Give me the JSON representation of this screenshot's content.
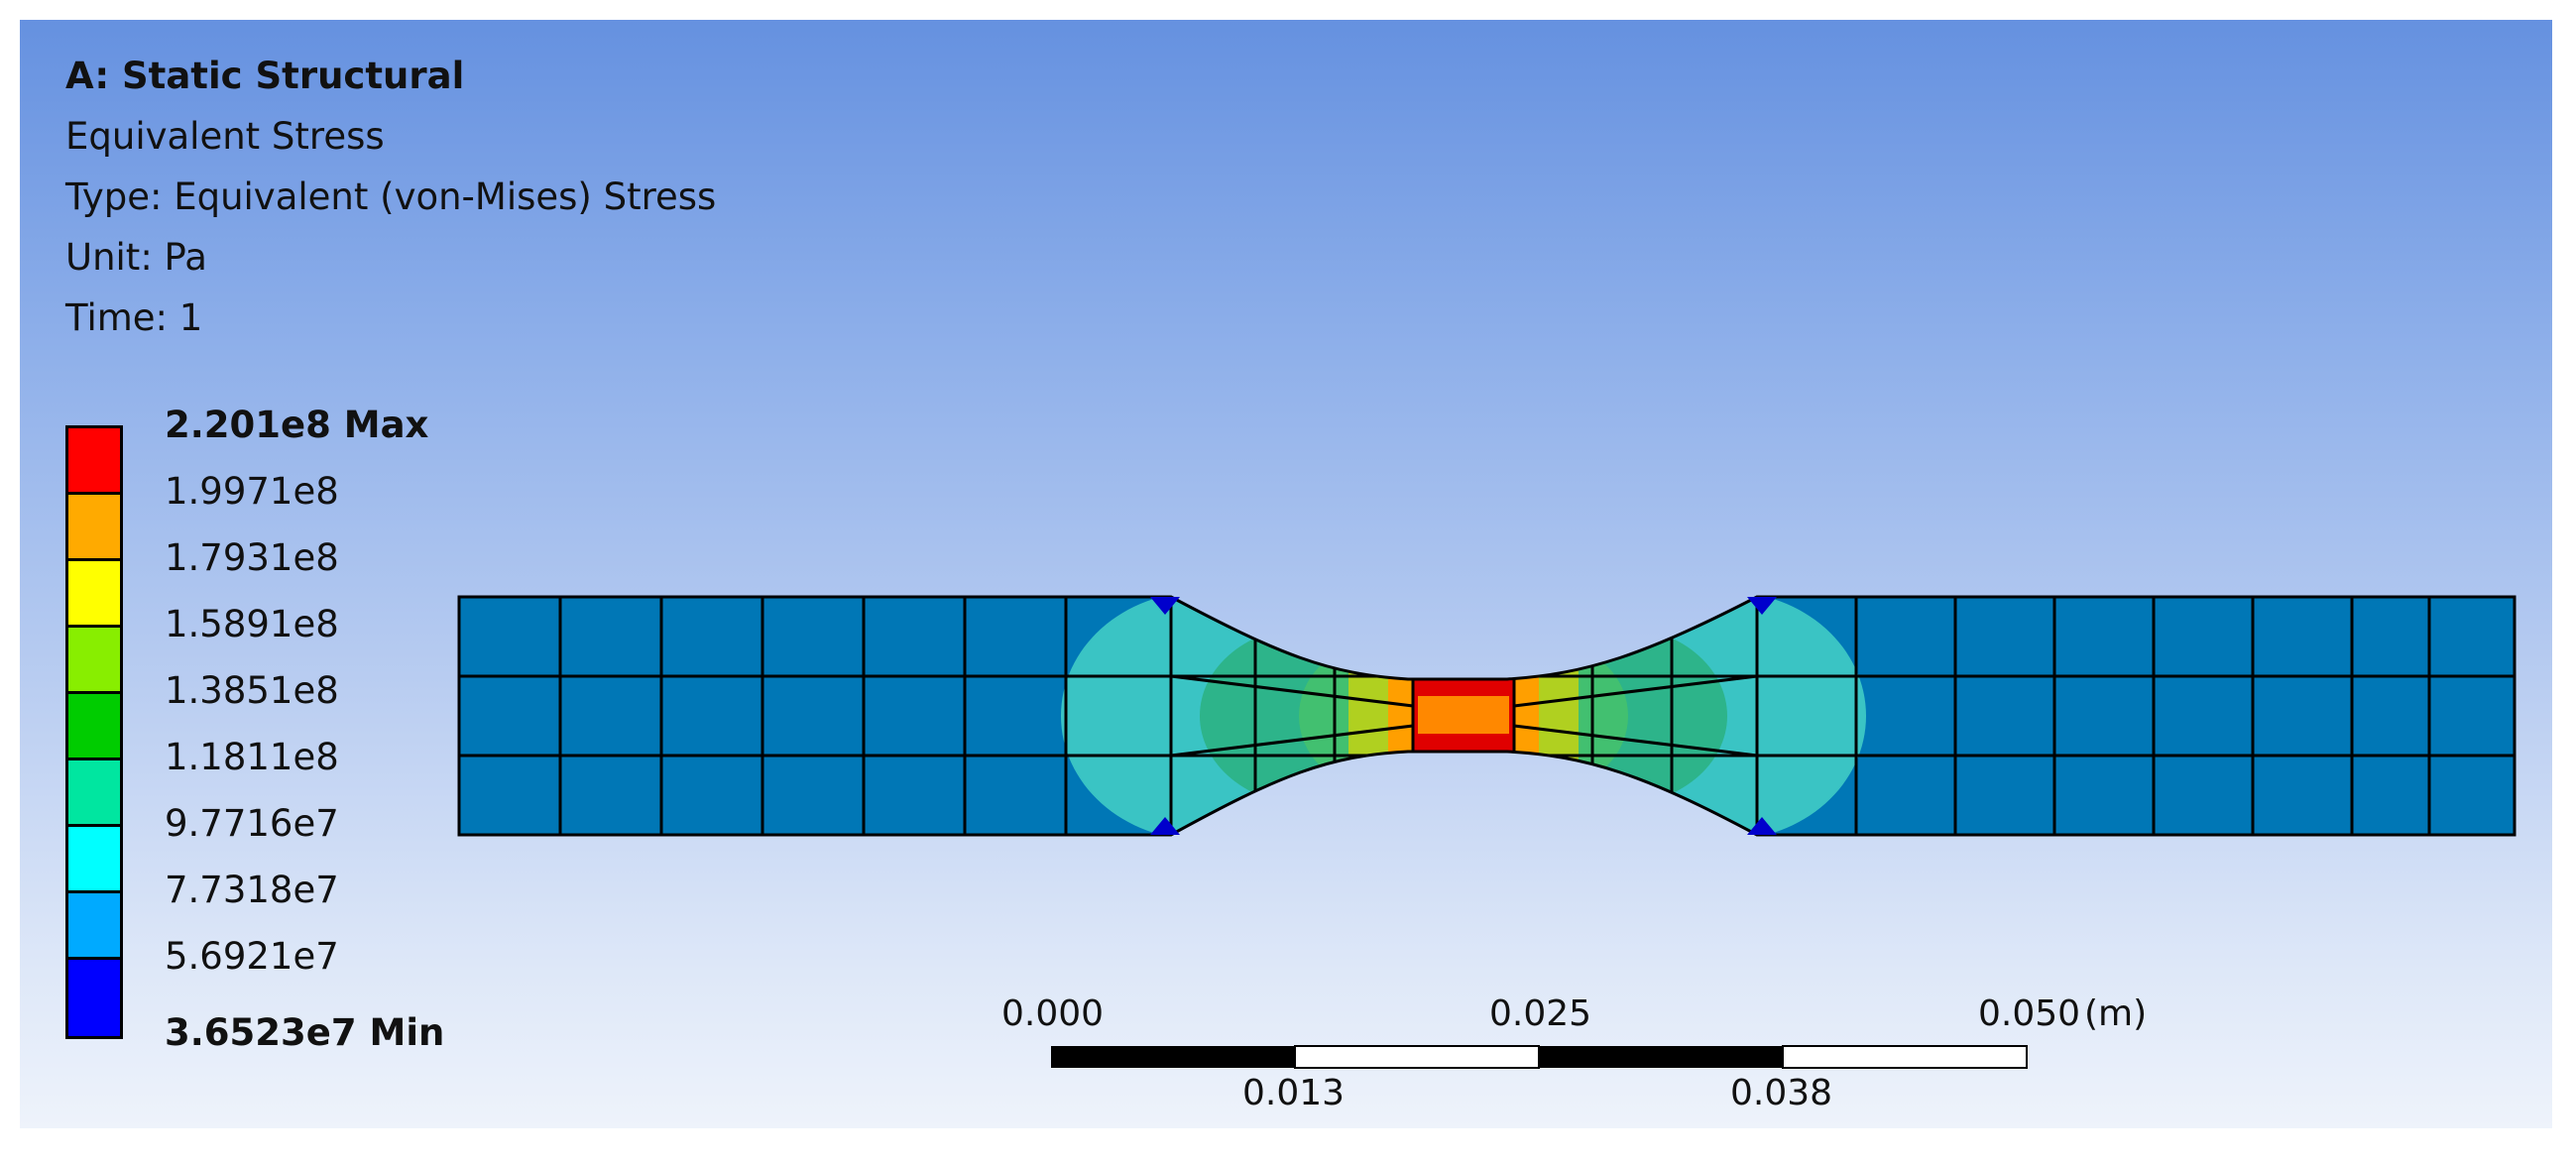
{
  "header": {
    "title": "A: Static Structural",
    "result": "Equivalent Stress",
    "type": "Type: Equivalent (von-Mises) Stress",
    "unit": "Unit: Pa",
    "time": "Time: 1"
  },
  "legend": {
    "max_label": "2.201e8 Max",
    "min_label": "3.6523e7 Min",
    "levels": [
      "1.9971e8",
      "1.7931e8",
      "1.5891e8",
      "1.3851e8",
      "1.1811e8",
      "9.7716e7",
      "7.7318e7",
      "5.6921e7"
    ],
    "band_colors": [
      "#ff0000",
      "#ffaa00",
      "#ffff00",
      "#88ee00",
      "#00cc00",
      "#00e6a0",
      "#00ffff",
      "#00aaff",
      "#0000ff"
    ]
  },
  "scale_bar": {
    "top_labels": [
      "0.000",
      "0.025",
      "0.050"
    ],
    "unit": "(m)",
    "bottom_labels": [
      "0.013",
      "0.038"
    ]
  },
  "colors": {
    "low": "#0077b6",
    "mid_low": "#3ac4c4",
    "mid": "#2db48a",
    "mid_high": "#42c070",
    "warm": "#b0d020",
    "hot_orange": "#ff9f00",
    "hot_red": "#e00000"
  }
}
